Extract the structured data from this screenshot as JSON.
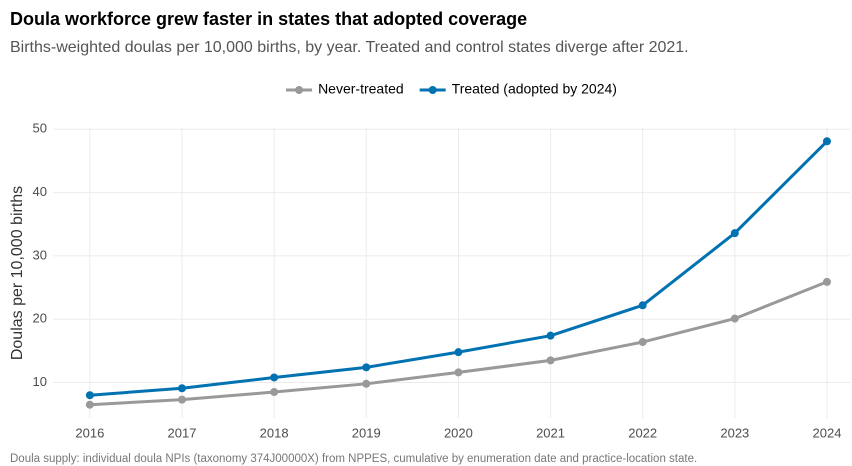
{
  "chart_data": {
    "type": "line",
    "title": "Doula workforce grew faster in states that adopted coverage",
    "subtitle": "Births-weighted doulas per 10,000 births, by year. Treated and control states diverge after 2021.",
    "y_label": "Doulas per 10,000 births",
    "caption": "Doula supply: individual doula NPIs (taxonomy 374J00000X) from NPPES, cumulative by enumeration date and practice-location state.",
    "x": [
      2016,
      2017,
      2018,
      2019,
      2020,
      2021,
      2022,
      2023,
      2024
    ],
    "series": [
      {
        "name": "Never-treated",
        "color": "#999999",
        "values": [
          6.5,
          7.3,
          8.5,
          9.8,
          11.6,
          13.5,
          16.4,
          20.1,
          25.9
        ]
      },
      {
        "name": "Treated (adopted by 2024)",
        "color": "#0072b2",
        "values": [
          8.0,
          9.1,
          10.8,
          12.4,
          14.8,
          17.4,
          22.2,
          33.6,
          48.1
        ]
      }
    ],
    "xlim": [
      2015.6,
      2024.25
    ],
    "xticks": [
      2016,
      2017,
      2018,
      2019,
      2020,
      2021,
      2022,
      2023,
      2024
    ],
    "ylim": [
      4.4,
      50.2
    ],
    "yticks": [
      10,
      20,
      30,
      40,
      50
    ],
    "grid": true,
    "legend": "top"
  }
}
